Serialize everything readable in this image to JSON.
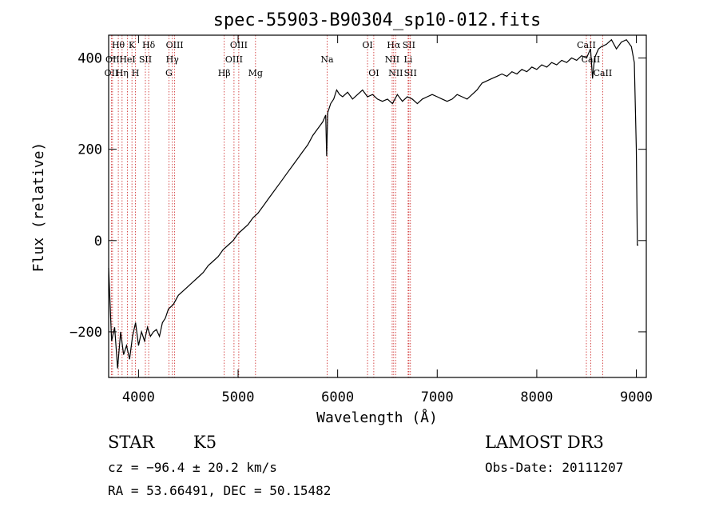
{
  "chart_data": {
    "type": "line",
    "title": "spec-55903-B90304_sp10-012.fits",
    "xlabel": "Wavelength (Å)",
    "ylabel": "Flux (relative)",
    "xlim": [
      3700,
      9100
    ],
    "ylim": [
      -300,
      450
    ],
    "xticks": [
      4000,
      5000,
      6000,
      7000,
      8000,
      9000
    ],
    "yticks": [
      -200,
      0,
      200,
      400
    ],
    "grid": false,
    "series": [
      {
        "color": "#000000",
        "x": [
          3700,
          3730,
          3760,
          3790,
          3820,
          3850,
          3880,
          3910,
          3940,
          3970,
          4000,
          4030,
          4060,
          4090,
          4120,
          4150,
          4180,
          4210,
          4240,
          4270,
          4300,
          4350,
          4400,
          4450,
          4500,
          4550,
          4600,
          4650,
          4700,
          4750,
          4800,
          4850,
          4900,
          4950,
          5000,
          5050,
          5100,
          5150,
          5200,
          5250,
          5300,
          5350,
          5400,
          5450,
          5500,
          5550,
          5600,
          5650,
          5700,
          5750,
          5800,
          5850,
          5880,
          5890,
          5900,
          5930,
          5960,
          5990,
          6020,
          6050,
          6100,
          6150,
          6200,
          6250,
          6300,
          6350,
          6400,
          6450,
          6500,
          6550,
          6600,
          6650,
          6700,
          6750,
          6800,
          6850,
          6900,
          6950,
          7000,
          7050,
          7100,
          7150,
          7200,
          7250,
          7300,
          7350,
          7400,
          7450,
          7500,
          7550,
          7600,
          7650,
          7700,
          7750,
          7800,
          7850,
          7900,
          7950,
          8000,
          8050,
          8100,
          8150,
          8200,
          8250,
          8300,
          8350,
          8400,
          8450,
          8500,
          8540,
          8560,
          8580,
          8600,
          8620,
          8650,
          8700,
          8750,
          8800,
          8850,
          8900,
          8950,
          8980,
          9000,
          9010,
          9020
        ],
        "y": [
          -60,
          -220,
          -190,
          -280,
          -200,
          -250,
          -230,
          -260,
          -210,
          -180,
          -230,
          -200,
          -220,
          -190,
          -210,
          -200,
          -195,
          -210,
          -180,
          -170,
          -150,
          -140,
          -120,
          -110,
          -100,
          -90,
          -80,
          -70,
          -55,
          -45,
          -35,
          -20,
          -10,
          0,
          15,
          25,
          35,
          50,
          60,
          75,
          90,
          105,
          120,
          135,
          150,
          165,
          180,
          195,
          210,
          230,
          245,
          260,
          275,
          185,
          280,
          300,
          310,
          330,
          320,
          315,
          325,
          310,
          320,
          330,
          315,
          320,
          310,
          305,
          310,
          300,
          320,
          305,
          315,
          310,
          300,
          310,
          315,
          320,
          315,
          310,
          305,
          310,
          320,
          315,
          310,
          320,
          330,
          345,
          350,
          355,
          360,
          365,
          360,
          370,
          365,
          375,
          370,
          380,
          375,
          385,
          380,
          390,
          385,
          395,
          390,
          400,
          395,
          405,
          400,
          420,
          355,
          400,
          410,
          420,
          425,
          430,
          440,
          420,
          435,
          440,
          425,
          390,
          200,
          -10,
          -10
        ]
      }
    ],
    "line_markers": [
      {
        "name": "Hθ",
        "x": 3797,
        "row": 1
      },
      {
        "name": "OII",
        "x": 3727,
        "row": 3
      },
      {
        "name": "OII",
        "x": 3739,
        "row": 2
      },
      {
        "name": "K",
        "x": 3934,
        "row": 1
      },
      {
        "name": "HeI",
        "x": 3889,
        "row": 2
      },
      {
        "name": "Hη",
        "x": 3835,
        "row": 3
      },
      {
        "name": "SII",
        "x": 4069,
        "row": 2
      },
      {
        "name": "H",
        "x": 3969,
        "row": 3
      },
      {
        "name": "Hδ",
        "x": 4102,
        "row": 1
      },
      {
        "name": "OIII",
        "x": 4363,
        "row": 1
      },
      {
        "name": "Hγ",
        "x": 4340,
        "row": 2
      },
      {
        "name": "G",
        "x": 4305,
        "row": 3
      },
      {
        "name": "OIII",
        "x": 5007,
        "row": 1
      },
      {
        "name": "OIII",
        "x": 4959,
        "row": 2
      },
      {
        "name": "Hβ",
        "x": 4861,
        "row": 3
      },
      {
        "name": "Mg",
        "x": 5175,
        "row": 3
      },
      {
        "name": "Na",
        "x": 5894,
        "row": 2
      },
      {
        "name": "OI",
        "x": 6300,
        "row": 1
      },
      {
        "name": "OI",
        "x": 6363,
        "row": 3
      },
      {
        "name": "Hα",
        "x": 6563,
        "row": 1
      },
      {
        "name": "NII",
        "x": 6548,
        "row": 2
      },
      {
        "name": "NII",
        "x": 6583,
        "row": 3
      },
      {
        "name": "SII",
        "x": 6716,
        "row": 1
      },
      {
        "name": "Li",
        "x": 6708,
        "row": 2
      },
      {
        "name": "SII",
        "x": 6731,
        "row": 3
      },
      {
        "name": "CaII",
        "x": 8498,
        "row": 1
      },
      {
        "name": "CaII",
        "x": 8542,
        "row": 2
      },
      {
        "name": "CaII",
        "x": 8662,
        "row": 3
      }
    ]
  },
  "info": {
    "class": "STAR",
    "subclass": "K5",
    "survey": "LAMOST DR3",
    "cz": "cz = −96.4 ± 20.2 km/s",
    "obs_date": "Obs-Date: 20111207",
    "radec": "RA =  53.66491, DEC =  50.15482"
  },
  "colors": {
    "spectrum": "#000000",
    "marker": "#cc2222"
  }
}
